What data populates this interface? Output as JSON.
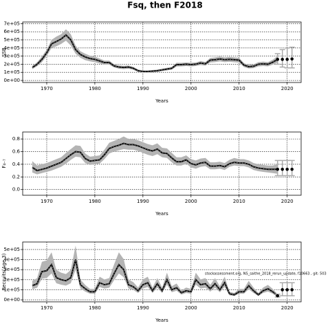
{
  "chart_data": [
    {
      "type": "line",
      "title": "Fsq, then F2018",
      "ylabel": "SSB",
      "xlabel": "Years",
      "x": [
        1967,
        1968,
        1969,
        1970,
        1971,
        1972,
        1973,
        1974,
        1975,
        1976,
        1977,
        1978,
        1979,
        1980,
        1981,
        1982,
        1983,
        1984,
        1985,
        1986,
        1987,
        1988,
        1989,
        1990,
        1991,
        1992,
        1993,
        1994,
        1995,
        1996,
        1997,
        1998,
        1999,
        2000,
        2001,
        2002,
        2003,
        2004,
        2005,
        2006,
        2007,
        2008,
        2009,
        2010,
        2011,
        2012,
        2013,
        2014,
        2015,
        2016,
        2017,
        2018
      ],
      "values": [
        160000.0,
        200000.0,
        260000.0,
        340000.0,
        450000.0,
        480000.0,
        510000.0,
        560000.0,
        500000.0,
        380000.0,
        320000.0,
        290000.0,
        270000.0,
        260000.0,
        240000.0,
        220000.0,
        220000.0,
        180000.0,
        165000.0,
        160000.0,
        165000.0,
        150000.0,
        120000.0,
        110000.0,
        110000.0,
        115000.0,
        120000.0,
        130000.0,
        140000.0,
        150000.0,
        195000.0,
        195000.0,
        200000.0,
        195000.0,
        200000.0,
        215000.0,
        205000.0,
        250000.0,
        255000.0,
        265000.0,
        255000.0,
        260000.0,
        255000.0,
        250000.0,
        190000.0,
        170000.0,
        175000.0,
        200000.0,
        205000.0,
        200000.0,
        225000.0,
        260000.0
      ],
      "lower": [
        140000.0,
        175000.0,
        225000.0,
        300000.0,
        400000.0,
        420000.0,
        450000.0,
        490000.0,
        430000.0,
        330000.0,
        280000.0,
        250000.0,
        235000.0,
        225000.0,
        210000.0,
        195000.0,
        195000.0,
        160000.0,
        145000.0,
        140000.0,
        145000.0,
        132000.0,
        105000.0,
        97000.0,
        97000.0,
        102000.0,
        106000.0,
        115000.0,
        124000.0,
        133000.0,
        172000.0,
        173000.0,
        178000.0,
        173000.0,
        178000.0,
        190000.0,
        182000.0,
        222000.0,
        226000.0,
        235000.0,
        226000.0,
        230000.0,
        225000.0,
        220000.0,
        166000.0,
        148000.0,
        152000.0,
        174000.0,
        178000.0,
        174000.0,
        195000.0,
        220000.0
      ],
      "upper": [
        180000.0,
        225000.0,
        295000.0,
        380000.0,
        500000.0,
        540000.0,
        570000.0,
        630000.0,
        570000.0,
        430000.0,
        360000.0,
        330000.0,
        305000.0,
        295000.0,
        270000.0,
        245000.0,
        245000.0,
        200000.0,
        185000.0,
        180000.0,
        185000.0,
        168000.0,
        135000.0,
        123000.0,
        123000.0,
        128000.0,
        134000.0,
        145000.0,
        156000.0,
        167000.0,
        218000.0,
        217000.0,
        222000.0,
        217000.0,
        222000.0,
        240000.0,
        228000.0,
        278000.0,
        284000.0,
        295000.0,
        284000.0,
        290000.0,
        285000.0,
        280000.0,
        214000.0,
        192000.0,
        198000.0,
        226000.0,
        232000.0,
        226000.0,
        255000.0,
        300000.0
      ],
      "projection": {
        "x": [
          2018,
          2019,
          2020,
          2021
        ],
        "values": [
          260000.0,
          260000.0,
          260000.0,
          265000.0
        ],
        "lower": [
          200000.0,
          165000.0,
          155000.0,
          155000.0
        ],
        "upper": [
          330000.0,
          380000.0,
          400000.0,
          410000.0
        ]
      },
      "color": "#000000",
      "band_color": "#b4b4b4",
      "proj_color": "#aaaaaa",
      "grid": true,
      "xlim": [
        1965,
        2022.9
      ],
      "xticks": [
        1970,
        1980,
        1990,
        2000,
        2010,
        2020
      ],
      "ylim": [
        -25000,
        720000
      ],
      "yticks": [
        {
          "value": 0,
          "label": "0e+00"
        },
        {
          "value": 100000,
          "label": "1e+05"
        },
        {
          "value": 200000,
          "label": "2e+05"
        },
        {
          "value": 300000,
          "label": "3e+05"
        },
        {
          "value": 400000,
          "label": "4e+05"
        },
        {
          "value": 500000,
          "label": "5e+05"
        },
        {
          "value": 600000,
          "label": "6e+05"
        },
        {
          "value": 700000,
          "label": "7e+05"
        }
      ]
    },
    {
      "type": "line",
      "ylabel": "F₄₋₇",
      "xlabel": "Years",
      "x": [
        1967,
        1968,
        1969,
        1970,
        1971,
        1972,
        1973,
        1974,
        1975,
        1976,
        1977,
        1978,
        1979,
        1980,
        1981,
        1982,
        1983,
        1984,
        1985,
        1986,
        1987,
        1988,
        1989,
        1990,
        1991,
        1992,
        1993,
        1994,
        1995,
        1996,
        1997,
        1998,
        1999,
        2000,
        2001,
        2002,
        2003,
        2004,
        2005,
        2006,
        2007,
        2008,
        2009,
        2010,
        2011,
        2012,
        2013,
        2014,
        2015,
        2016,
        2017,
        2018
      ],
      "values": [
        0.35,
        0.3,
        0.32,
        0.34,
        0.37,
        0.4,
        0.43,
        0.49,
        0.55,
        0.6,
        0.59,
        0.49,
        0.45,
        0.46,
        0.47,
        0.55,
        0.65,
        0.68,
        0.7,
        0.73,
        0.71,
        0.71,
        0.69,
        0.66,
        0.63,
        0.61,
        0.64,
        0.58,
        0.57,
        0.5,
        0.44,
        0.44,
        0.47,
        0.41,
        0.39,
        0.42,
        0.43,
        0.37,
        0.37,
        0.38,
        0.36,
        0.41,
        0.43,
        0.42,
        0.42,
        0.4,
        0.36,
        0.34,
        0.33,
        0.32,
        0.32,
        0.32
      ],
      "lower": [
        0.27,
        0.24,
        0.26,
        0.28,
        0.3,
        0.33,
        0.36,
        0.41,
        0.47,
        0.52,
        0.51,
        0.42,
        0.39,
        0.4,
        0.41,
        0.48,
        0.57,
        0.6,
        0.62,
        0.64,
        0.63,
        0.63,
        0.61,
        0.58,
        0.55,
        0.53,
        0.56,
        0.51,
        0.5,
        0.43,
        0.38,
        0.38,
        0.41,
        0.35,
        0.33,
        0.36,
        0.37,
        0.32,
        0.32,
        0.33,
        0.31,
        0.36,
        0.38,
        0.37,
        0.37,
        0.35,
        0.31,
        0.29,
        0.28,
        0.27,
        0.26,
        0.25
      ],
      "upper": [
        0.45,
        0.38,
        0.4,
        0.42,
        0.45,
        0.48,
        0.51,
        0.58,
        0.64,
        0.7,
        0.69,
        0.57,
        0.52,
        0.53,
        0.54,
        0.63,
        0.74,
        0.77,
        0.8,
        0.84,
        0.8,
        0.8,
        0.78,
        0.75,
        0.72,
        0.7,
        0.73,
        0.66,
        0.65,
        0.58,
        0.51,
        0.51,
        0.54,
        0.48,
        0.46,
        0.49,
        0.5,
        0.43,
        0.43,
        0.44,
        0.42,
        0.47,
        0.5,
        0.48,
        0.48,
        0.46,
        0.42,
        0.4,
        0.39,
        0.38,
        0.38,
        0.4
      ],
      "projection": {
        "x": [
          2018,
          2019,
          2020,
          2021
        ],
        "values": [
          0.32,
          0.32,
          0.32,
          0.32
        ],
        "lower": [
          0.22,
          0.22,
          0.22,
          0.22
        ],
        "upper": [
          0.46,
          0.46,
          0.46,
          0.46
        ]
      },
      "color": "#000000",
      "band_color": "#b4b4b4",
      "proj_color": "#aaaaaa",
      "grid": true,
      "xlim": [
        1965,
        2022.9
      ],
      "xticks": [
        1970,
        1980,
        1990,
        2000,
        2010,
        2020
      ],
      "ylim": [
        -0.09,
        0.91
      ],
      "yticks": [
        {
          "value": 0,
          "label": "0.0"
        },
        0.2,
        0.4,
        0.6,
        0.8
      ]
    },
    {
      "type": "line",
      "ylabel": "Recruits(Age 3)",
      "xlabel": "Years",
      "annotation": "stockassessment.org, NS_saithe_2018_rerun_update, f10663 , git: 503",
      "x": [
        1967,
        1968,
        1969,
        1970,
        1971,
        1972,
        1973,
        1974,
        1975,
        1976,
        1977,
        1978,
        1979,
        1980,
        1981,
        1982,
        1983,
        1984,
        1985,
        1986,
        1987,
        1988,
        1989,
        1990,
        1991,
        1992,
        1993,
        1994,
        1995,
        1996,
        1997,
        1998,
        1999,
        2000,
        2001,
        2002,
        2003,
        2004,
        2005,
        2006,
        2007,
        2008,
        2009,
        2010,
        2011,
        2012,
        2013,
        2014,
        2015,
        2016,
        2017,
        2018
      ],
      "values": [
        140000.0,
        160000.0,
        280000.0,
        290000.0,
        350000.0,
        220000.0,
        200000.0,
        190000.0,
        220000.0,
        400000.0,
        150000.0,
        110000.0,
        80000.0,
        80000.0,
        170000.0,
        150000.0,
        160000.0,
        260000.0,
        350000.0,
        300000.0,
        150000.0,
        130000.0,
        90000.0,
        150000.0,
        170000.0,
        90000.0,
        160000.0,
        90000.0,
        200000.0,
        100000.0,
        120000.0,
        70000.0,
        90000.0,
        80000.0,
        200000.0,
        150000.0,
        160000.0,
        110000.0,
        160000.0,
        100000.0,
        170000.0,
        60000.0,
        50000.0,
        80000.0,
        80000.0,
        140000.0,
        90000.0,
        50000.0,
        90000.0,
        110000.0,
        80000.0,
        40000.0
      ],
      "lower": [
        105000.0,
        120000.0,
        210000.0,
        218000.0,
        262000.0,
        165000.0,
        150000.0,
        142000.0,
        165000.0,
        300000.0,
        112000.0,
        82000.0,
        60000.0,
        60000.0,
        128000.0,
        112000.0,
        120000.0,
        195000.0,
        262000.0,
        225000.0,
        112000.0,
        98000.0,
        68000.0,
        112000.0,
        128000.0,
        68000.0,
        120000.0,
        68000.0,
        150000.0,
        75000.0,
        90000.0,
        52000.0,
        68000.0,
        60000.0,
        150000.0,
        112000.0,
        120000.0,
        82000.0,
        120000.0,
        75000.0,
        128000.0,
        45000.0,
        38000.0,
        60000.0,
        60000.0,
        105000.0,
        68000.0,
        38000.0,
        68000.0,
        82000.0,
        60000.0,
        28000.0
      ],
      "upper": [
        189000.0,
        216000.0,
        378000.0,
        392000.0,
        472000.0,
        297000.0,
        270000.0,
        256000.0,
        297000.0,
        540000.0,
        202000.0,
        148000.0,
        108000.0,
        108000.0,
        230000.0,
        202000.0,
        216000.0,
        351000.0,
        472000.0,
        405000.0,
        202000.0,
        176000.0,
        122000.0,
        202000.0,
        230000.0,
        122000.0,
        216000.0,
        122000.0,
        270000.0,
        135000.0,
        162000.0,
        94000.0,
        122000.0,
        108000.0,
        270000.0,
        202000.0,
        216000.0,
        148000.0,
        216000.0,
        135000.0,
        230000.0,
        81000.0,
        68000.0,
        108000.0,
        108000.0,
        189000.0,
        122000.0,
        68000.0,
        122000.0,
        148000.0,
        108000.0,
        56000.0
      ],
      "projection": {
        "x": [
          2018,
          2019,
          2020,
          2021
        ],
        "values": [
          40000.0,
          100000.0,
          100000.0,
          100000.0
        ],
        "lower": [
          28000.0,
          40000.0,
          40000.0,
          40000.0
        ],
        "upper": [
          56000.0,
          170000.0,
          170000.0,
          170000.0
        ]
      },
      "color": "#000000",
      "band_color": "#b4b4b4",
      "proj_color": "#aaaaaa",
      "grid": true,
      "xlim": [
        1965,
        2022.9
      ],
      "xticks": [
        1970,
        1980,
        1990,
        2000,
        2010,
        2020
      ],
      "ylim": [
        -20000,
        575000
      ],
      "yticks": [
        {
          "value": 0,
          "label": "0e+00"
        },
        {
          "value": 100000,
          "label": "1e+05"
        },
        {
          "value": 200000,
          "label": "2e+05"
        },
        {
          "value": 300000,
          "label": "3e+05"
        },
        {
          "value": 400000,
          "label": "4e+05"
        },
        {
          "value": 500000,
          "label": "5e+05"
        }
      ]
    }
  ]
}
